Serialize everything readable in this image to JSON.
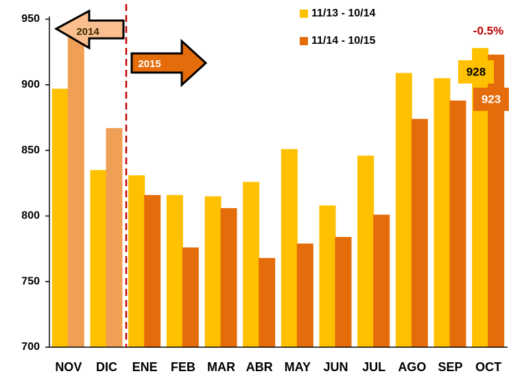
{
  "chart_data": {
    "type": "bar",
    "categories": [
      "NOV",
      "DIC",
      "ENE",
      "FEB",
      "MAR",
      "ABR",
      "MAY",
      "JUN",
      "JUL",
      "AGO",
      "SEP",
      "OCT"
    ],
    "series": [
      {
        "name": "11/13 - 10/14",
        "color": "#ffc000",
        "colors": [
          "#ffc000",
          "#ffc000",
          "#ffc000",
          "#ffc000",
          "#ffc000",
          "#ffc000",
          "#ffc000",
          "#ffc000",
          "#ffc000",
          "#ffc000",
          "#ffc000",
          "#ffc000"
        ],
        "values": [
          897,
          835,
          831,
          816,
          815,
          826,
          851,
          808,
          846,
          909,
          905,
          928
        ]
      },
      {
        "name": "11/14 - 10/15",
        "color": "#e46c0a",
        "colors": [
          "#f0a056",
          "#f0a056",
          "#e46c0a",
          "#e46c0a",
          "#e46c0a",
          "#e46c0a",
          "#e46c0a",
          "#e46c0a",
          "#e46c0a",
          "#e46c0a",
          "#e46c0a",
          "#e46c0a"
        ],
        "values": [
          945,
          867,
          816,
          776,
          806,
          768,
          779,
          784,
          801,
          874,
          888,
          923
        ]
      }
    ],
    "annotations": [
      "2014",
      "2015",
      "-0.5%"
    ],
    "ylim": [
      700,
      950
    ],
    "yticks": [
      700,
      750,
      800,
      850,
      900,
      950
    ],
    "grid": false,
    "legend": "top-right"
  }
}
